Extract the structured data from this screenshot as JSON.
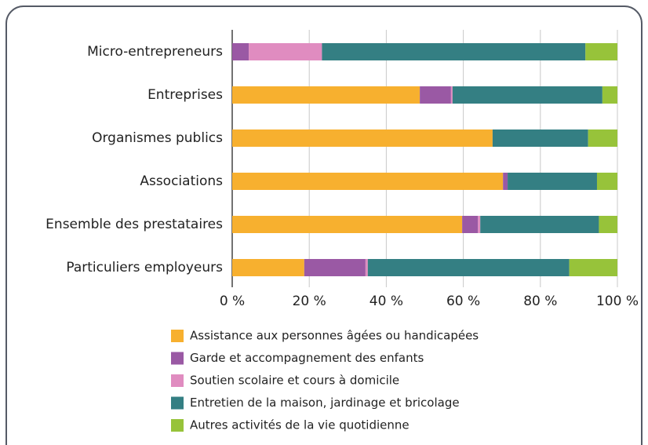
{
  "chart_data": {
    "type": "stacked_bar_horizontal",
    "categories": [
      "Micro-entrepreneurs",
      "Entreprises",
      "Organismes publics",
      "Associations",
      "Ensemble des prestataires",
      "Particuliers employeurs"
    ],
    "series": [
      {
        "name": "Assistance aux personnes âgées ou handicapées",
        "color": "#f7b02f",
        "values": [
          0,
          48.7,
          67.6,
          70.3,
          59.7,
          18.7
        ]
      },
      {
        "name": "Garde et accompagnement des enfants",
        "color": "#9a59a4",
        "values": [
          4.3,
          8.1,
          0,
          1.2,
          4.1,
          15.9
        ]
      },
      {
        "name": "Soutien scolaire et cours à domicile",
        "color": "#e08cc0",
        "values": [
          19,
          0.4,
          0,
          0,
          0.6,
          0.6
        ]
      },
      {
        "name": "Entretien de la maison, jardinage et bricolage",
        "color": "#347f83",
        "values": [
          68.4,
          38.9,
          24.8,
          23.2,
          30.8,
          52.3
        ]
      },
      {
        "name": "Autres activités de la vie quotidienne",
        "color": "#97c33a",
        "values": [
          8.3,
          3.9,
          7.6,
          5.3,
          4.8,
          12.5
        ]
      }
    ],
    "xlim": [
      0,
      100
    ],
    "xticks": [
      {
        "value": 0,
        "label": "0 %"
      },
      {
        "value": 20,
        "label": "20 %"
      },
      {
        "value": 40,
        "label": "40 %"
      },
      {
        "value": 60,
        "label": "60 %"
      },
      {
        "value": 80,
        "label": "80 %"
      },
      {
        "value": 100,
        "label": "100 %"
      }
    ],
    "grid": true,
    "legend": "bottom"
  }
}
